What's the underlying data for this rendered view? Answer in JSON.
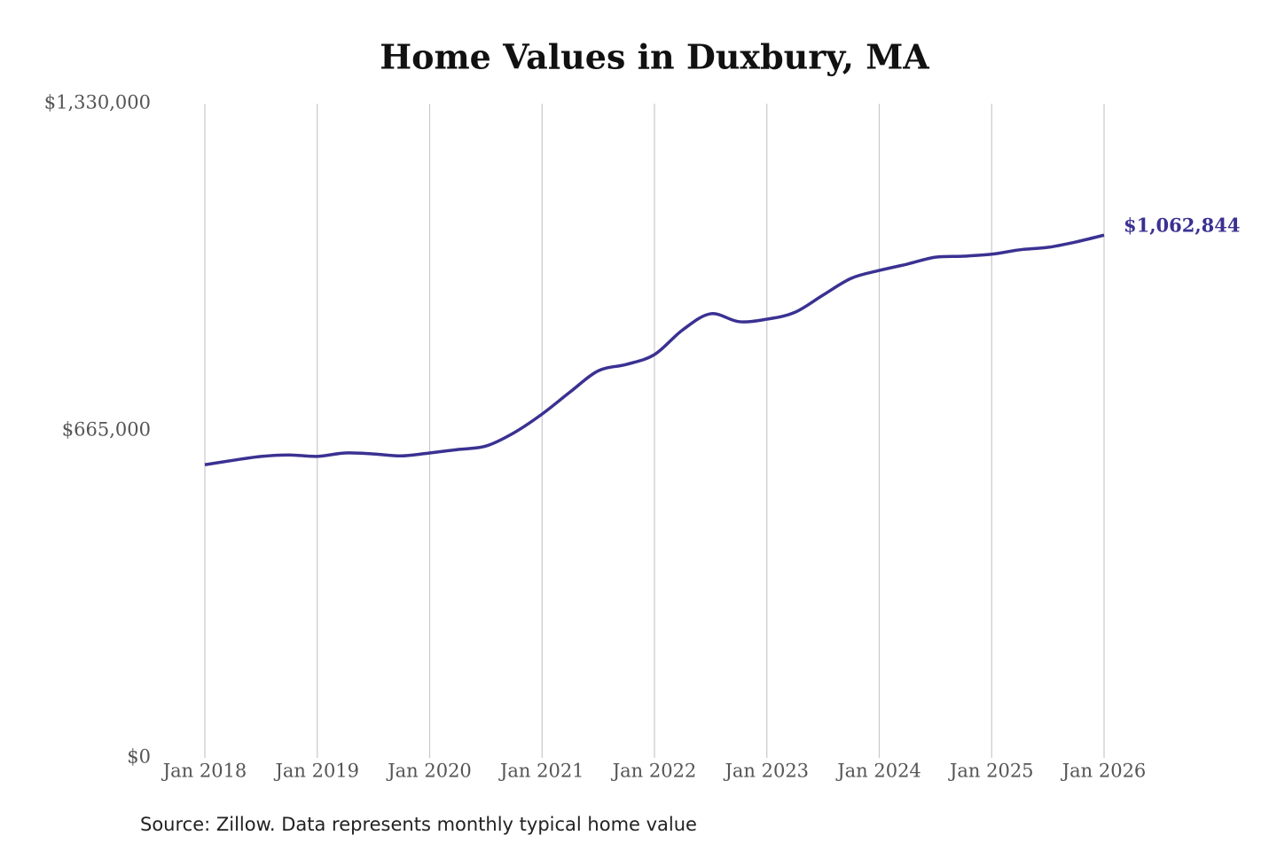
{
  "chart_data": {
    "type": "line",
    "title": "Home Values in Duxbury, MA",
    "source": "Source: Zillow. Data represents monthly typical home value",
    "x": [
      "2018-01",
      "2018-04",
      "2018-07",
      "2018-10",
      "2019-01",
      "2019-04",
      "2019-07",
      "2019-10",
      "2020-01",
      "2020-04",
      "2020-07",
      "2020-10",
      "2021-01",
      "2021-04",
      "2021-07",
      "2021-10",
      "2022-01",
      "2022-04",
      "2022-07",
      "2022-10",
      "2023-01",
      "2023-04",
      "2023-07",
      "2023-10",
      "2024-01",
      "2024-04",
      "2024-07",
      "2024-10",
      "2025-01",
      "2025-04",
      "2025-07",
      "2025-10",
      "2026-01"
    ],
    "series": [
      {
        "color": "#3a3192",
        "values": [
          596000,
          605000,
          613000,
          616000,
          613000,
          620000,
          618000,
          614000,
          620000,
          627000,
          634000,
          661000,
          699000,
          744000,
          787000,
          800000,
          820000,
          870000,
          903000,
          887000,
          892000,
          906000,
          941000,
          975000,
          991000,
          1004000,
          1018000,
          1020000,
          1024000,
          1033000,
          1038000,
          1049000,
          1062844
        ],
        "value_labels": [
          null,
          null,
          null,
          null,
          null,
          null,
          null,
          null,
          null,
          null,
          null,
          null,
          null,
          null,
          null,
          null,
          null,
          null,
          null,
          null,
          null,
          null,
          null,
          null,
          null,
          null,
          null,
          null,
          null,
          null,
          null,
          null,
          "$1,062,844"
        ]
      }
    ],
    "xlim": [
      "2018-01",
      "2026-01"
    ],
    "xticks": [
      {
        "value": "2018-01",
        "label": "Jan 2018"
      },
      {
        "value": "2019-01",
        "label": "Jan 2019"
      },
      {
        "value": "2020-01",
        "label": "Jan 2020"
      },
      {
        "value": "2021-01",
        "label": "Jan 2021"
      },
      {
        "value": "2022-01",
        "label": "Jan 2022"
      },
      {
        "value": "2023-01",
        "label": "Jan 2023"
      },
      {
        "value": "2024-01",
        "label": "Jan 2024"
      },
      {
        "value": "2025-01",
        "label": "Jan 2025"
      },
      {
        "value": "2026-01",
        "label": "Jan 2026"
      }
    ],
    "ylim": [
      0,
      1330000
    ],
    "yticks": [
      {
        "value": 0,
        "label": "$0"
      },
      {
        "value": 665000,
        "label": "$665,000"
      },
      {
        "value": 1330000,
        "label": "$1,330,000"
      }
    ],
    "grid": "x"
  }
}
